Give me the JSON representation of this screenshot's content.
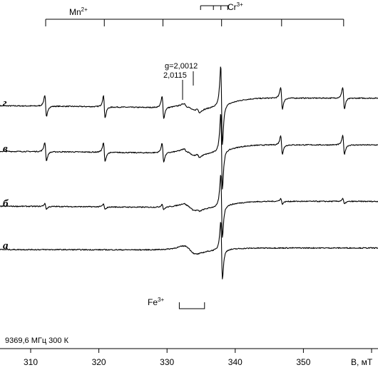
{
  "chart_data": {
    "type": "line",
    "x_axis": {
      "label": "B, мТ",
      "range": [
        305,
        364
      ],
      "ticks": [
        310,
        320,
        330,
        340,
        350,
        360
      ],
      "tick_labels": [
        "310",
        "320",
        "330",
        "340",
        "350"
      ]
    },
    "footer_text": "9369,6 МГц 300 К",
    "mn_marker": {
      "label": "Mn",
      "superscript": "2+",
      "positions": [
        312.2,
        320.8,
        329.4,
        338.0,
        346.8,
        355.9
      ]
    },
    "cr_marker": {
      "label": "Cr",
      "superscript": "3+",
      "positions": [
        336.8,
        337.9,
        338.9
      ]
    },
    "g_annotations": [
      {
        "text": "g=2,0012",
        "field": 334.6
      },
      {
        "text": "2,0115",
        "field": 332.7
      }
    ],
    "fe_marker": {
      "label": "Fe",
      "superscript": "3+",
      "range": [
        331.8,
        335.5
      ]
    },
    "series": [
      {
        "name": "г",
        "baseline": 120,
        "drift": 0.95,
        "mn_amp": 1.0,
        "fe_amp": 0.55,
        "g_amp": 0.3
      },
      {
        "name": "в",
        "baseline": 98,
        "drift": 0.8,
        "mn_amp": 0.85,
        "fe_amp": 0.55,
        "g_amp": 0.25
      },
      {
        "name": "б",
        "baseline": 74,
        "drift": 0.6,
        "mn_amp": 0.25,
        "fe_amp": 0.6,
        "g_amp": 0.12
      },
      {
        "name": "а",
        "baseline": 52,
        "drift": 0.2,
        "mn_amp": 0.0,
        "fe_amp": 0.7,
        "g_amp": 0.0
      }
    ]
  }
}
